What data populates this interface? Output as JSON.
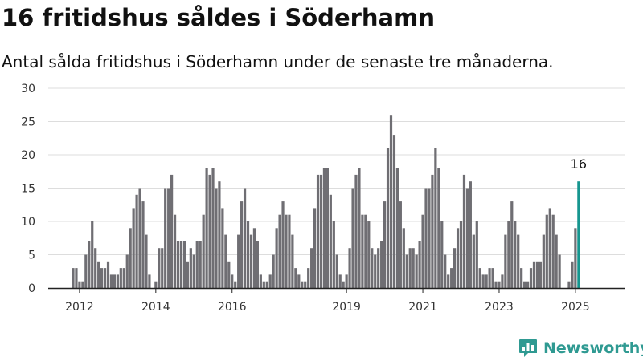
{
  "title": "16 fritidshus såldes i Söderhamn",
  "subtitle": "Antal sålda fritidshus i Söderhamn under de senaste tre månaderna.",
  "brand": {
    "name": "Newsworthy",
    "icon": "newsworthy-logo-icon",
    "color": "#2f9a92"
  },
  "colors": {
    "bar": "#6f6e73",
    "highlight": "#16968f",
    "grid": "#dddddd",
    "axis": "#222222"
  },
  "chart_data": {
    "type": "bar",
    "title": "16 fritidshus såldes i Söderhamn",
    "subtitle": "Antal sålda fritidshus i Söderhamn under de senaste tre månaderna.",
    "xlabel": "",
    "ylabel": "",
    "ylim": [
      0,
      30
    ],
    "y_ticks": [
      0,
      5,
      10,
      15,
      20,
      25,
      30
    ],
    "x_tick_labels": [
      {
        "label": "2012",
        "index": 2
      },
      {
        "label": "2014",
        "index": 26
      },
      {
        "label": "2016",
        "index": 50
      },
      {
        "label": "2019",
        "index": 86
      },
      {
        "label": "2021",
        "index": 110
      },
      {
        "label": "2023",
        "index": 134
      },
      {
        "label": "2025",
        "index": 158
      }
    ],
    "grid": true,
    "values": [
      3,
      3,
      1,
      1,
      5,
      7,
      10,
      6,
      4,
      3,
      3,
      4,
      2,
      2,
      2,
      3,
      3,
      5,
      9,
      12,
      14,
      15,
      13,
      8,
      2,
      0,
      1,
      6,
      6,
      15,
      15,
      17,
      11,
      7,
      7,
      7,
      4,
      6,
      5,
      7,
      7,
      11,
      18,
      17,
      18,
      15,
      16,
      12,
      8,
      4,
      2,
      1,
      8,
      13,
      15,
      10,
      8,
      9,
      7,
      2,
      1,
      1,
      2,
      5,
      9,
      11,
      13,
      11,
      11,
      8,
      3,
      2,
      1,
      1,
      3,
      6,
      12,
      17,
      17,
      18,
      18,
      14,
      10,
      5,
      2,
      1,
      2,
      6,
      15,
      17,
      18,
      11,
      11,
      10,
      6,
      5,
      6,
      7,
      13,
      21,
      26,
      23,
      18,
      13,
      9,
      5,
      6,
      6,
      5,
      7,
      11,
      15,
      15,
      17,
      21,
      18,
      10,
      5,
      2,
      3,
      6,
      9,
      10,
      17,
      15,
      16,
      8,
      10,
      3,
      2,
      2,
      3,
      3,
      1,
      1,
      2,
      8,
      10,
      13,
      10,
      8,
      3,
      1,
      1,
      3,
      4,
      4,
      4,
      8,
      11,
      12,
      11,
      8,
      5,
      0,
      0,
      1,
      4,
      9,
      16
    ],
    "highlight_index": 159,
    "annotation": {
      "label": "16",
      "index": 159
    }
  }
}
